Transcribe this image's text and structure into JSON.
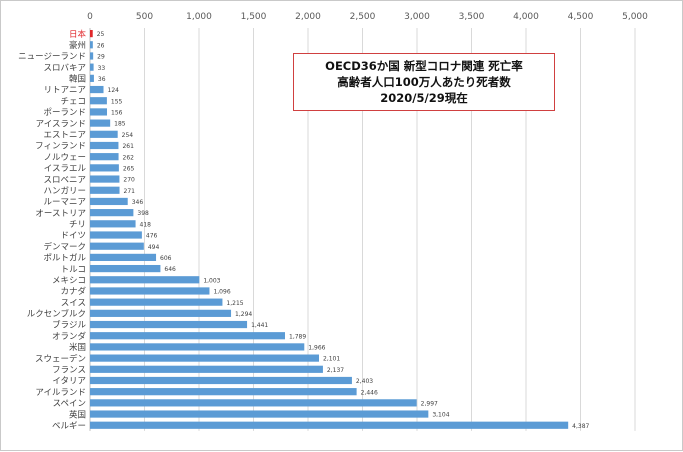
{
  "chart_data": {
    "type": "bar",
    "orientation": "horizontal",
    "title_lines": [
      "OECD36か国 新型コロナ関連 死亡率",
      "高齢者人口100万人あたり死者数",
      "2020/5/29現在"
    ],
    "xlabel": "",
    "ylabel": "",
    "xlim": [
      0,
      5000
    ],
    "x_ticks": [
      "0",
      "500",
      "1,000",
      "1,500",
      "2,000",
      "2,500",
      "3,000",
      "3,500",
      "4,000",
      "4,500",
      "5,000"
    ],
    "grid": true,
    "legend": "none",
    "bar_color": "#5b9bd5",
    "highlight_color": "#e0262a",
    "highlight_category": "日本",
    "categories": [
      "日本",
      "豪州",
      "ニュージーランド",
      "スロバキア",
      "韓国",
      "リトアニア",
      "チェコ",
      "ポーランド",
      "アイスランド",
      "エストニア",
      "フィンランド",
      "ノルウェー",
      "イスラエル",
      "スロベニア",
      "ハンガリー",
      "ルーマニア",
      "オーストリア",
      "チリ",
      "ドイツ",
      "デンマーク",
      "ポルトガル",
      "トルコ",
      "メキシコ",
      "カナダ",
      "スイス",
      "ルクセンブルク",
      "ブラジル",
      "オランダ",
      "米国",
      "スウェーデン",
      "フランス",
      "イタリア",
      "アイルランド",
      "スペイン",
      "英国",
      "ベルギー"
    ],
    "values": [
      25,
      26,
      29,
      33,
      36,
      124,
      155,
      156,
      185,
      254,
      261,
      262,
      265,
      270,
      271,
      346,
      398,
      418,
      476,
      494,
      606,
      646,
      1003,
      1096,
      1215,
      1294,
      1441,
      1789,
      1966,
      2101,
      2137,
      2403,
      2446,
      2997,
      3104,
      4387
    ],
    "value_labels": [
      "25",
      "26",
      "29",
      "33",
      "36",
      "124",
      "155",
      "156",
      "185",
      "254",
      "261",
      "262",
      "265",
      "270",
      "271",
      "346",
      "398",
      "418",
      "476",
      "494",
      "606",
      "646",
      "1,003",
      "1,096",
      "1,215",
      "1,294",
      "1,441",
      "1,789",
      "1,966",
      "2,101",
      "2,137",
      "2,403",
      "2,446",
      "2,997",
      "3,104",
      "4,387"
    ]
  }
}
